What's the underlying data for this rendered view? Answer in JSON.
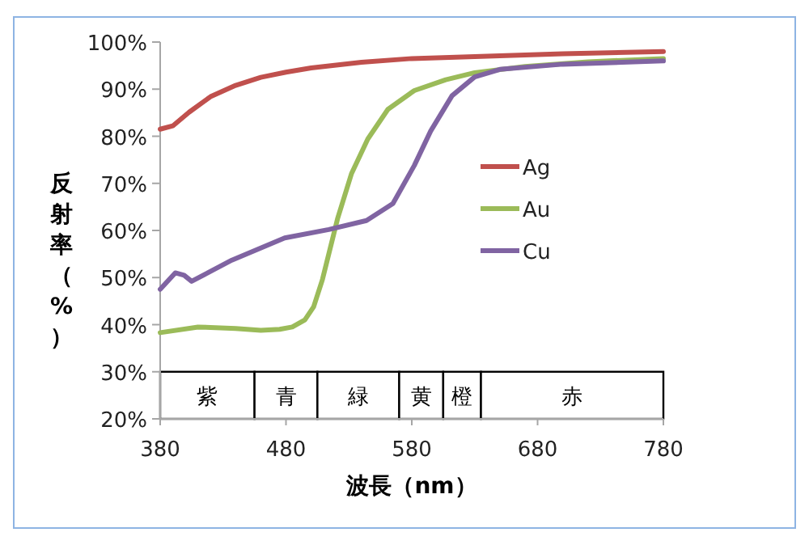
{
  "chart_data": {
    "type": "line",
    "xlabel": "波長（nm）",
    "ylabel": "反射率（%）",
    "xlim": [
      380,
      780
    ],
    "xticks": [
      380,
      480,
      580,
      680,
      780
    ],
    "ylim": [
      20,
      100
    ],
    "yticks": [
      {
        "value": 20,
        "label": "20%"
      },
      {
        "value": 30,
        "label": "30%"
      },
      {
        "value": 40,
        "label": "40%"
      },
      {
        "value": 50,
        "label": "50%"
      },
      {
        "value": 60,
        "label": "60%"
      },
      {
        "value": 70,
        "label": "70%"
      },
      {
        "value": 80,
        "label": "80%"
      },
      {
        "value": 90,
        "label": "90%"
      },
      {
        "value": 100,
        "label": "100%"
      }
    ],
    "grid": false,
    "legend": "right",
    "marker": "none",
    "line_style": "solid",
    "series": [
      {
        "name": "Ag",
        "color": "#c0504d",
        "x": [
          380,
          390,
          403,
          420,
          440,
          460,
          480,
          500,
          540,
          580,
          640,
          700,
          780
        ],
        "values": [
          81.5,
          82.2,
          85.1,
          88.4,
          90.8,
          92.5,
          93.6,
          94.5,
          95.7,
          96.5,
          97,
          97.5,
          98
        ]
      },
      {
        "name": "Au",
        "color": "#9bbb59",
        "x": [
          380,
          410,
          440,
          460,
          475,
          485,
          495,
          502,
          509,
          521,
          532,
          545,
          561,
          582,
          607,
          630,
          670,
          720,
          780
        ],
        "values": [
          38.3,
          39.5,
          39.2,
          38.8,
          39,
          39.5,
          41,
          43.8,
          49.6,
          62.5,
          72,
          79.4,
          85.7,
          89.7,
          92,
          93.5,
          94.8,
          95.8,
          96.5
        ]
      },
      {
        "name": "Cu",
        "color": "#8064a2",
        "x": [
          380,
          392,
          399,
          405,
          437,
          479,
          514,
          544,
          565,
          582,
          595,
          612,
          630,
          650,
          700,
          780
        ],
        "values": [
          47.5,
          51,
          50.5,
          49.2,
          53.7,
          58.4,
          60.2,
          62.1,
          65.7,
          73.8,
          81.1,
          88.6,
          92.6,
          94.2,
          95.3,
          96
        ]
      }
    ],
    "bands": [
      {
        "axis": "x",
        "from": 380,
        "to": 455,
        "label": "紫",
        "color": "#ffffff"
      },
      {
        "axis": "x",
        "from": 455,
        "to": 505,
        "label": "青",
        "color": "#ffffff"
      },
      {
        "axis": "x",
        "from": 505,
        "to": 570,
        "label": "緑",
        "color": "#ffffff"
      },
      {
        "axis": "x",
        "from": 570,
        "to": 605,
        "label": "黄",
        "color": "#ffffff"
      },
      {
        "axis": "x",
        "from": 605,
        "to": 635,
        "label": "橙",
        "color": "#ffffff"
      },
      {
        "axis": "x",
        "from": 635,
        "to": 780,
        "label": "赤",
        "color": "#ffffff"
      }
    ]
  }
}
